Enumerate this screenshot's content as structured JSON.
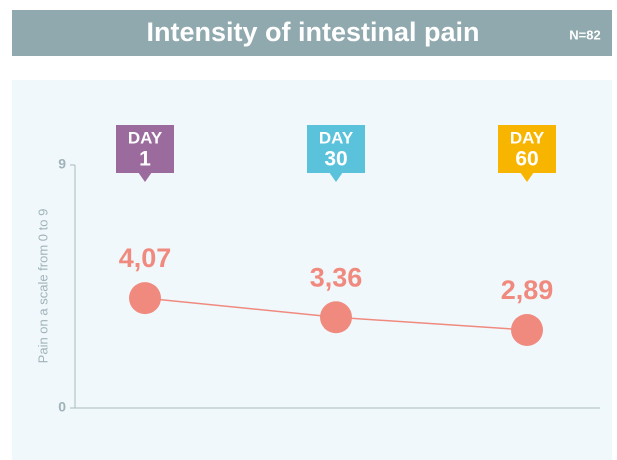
{
  "chart_data": {
    "type": "line",
    "title": "Intensity of intestinal pain",
    "subtitle": "N=82",
    "y_label": "Pain on a scale from 0 to 9",
    "category_prefix": "DAY",
    "categories": [
      "1",
      "30",
      "60"
    ],
    "category_colors": [
      "#9b6b9e",
      "#5bc2dc",
      "#f7b500"
    ],
    "values": [
      4.07,
      3.36,
      2.89
    ],
    "value_labels": [
      "4,07",
      "3,36",
      "2,89"
    ],
    "color": "#f08a7e",
    "ylim": [
      0,
      9
    ],
    "yticks": [
      0,
      9
    ]
  }
}
